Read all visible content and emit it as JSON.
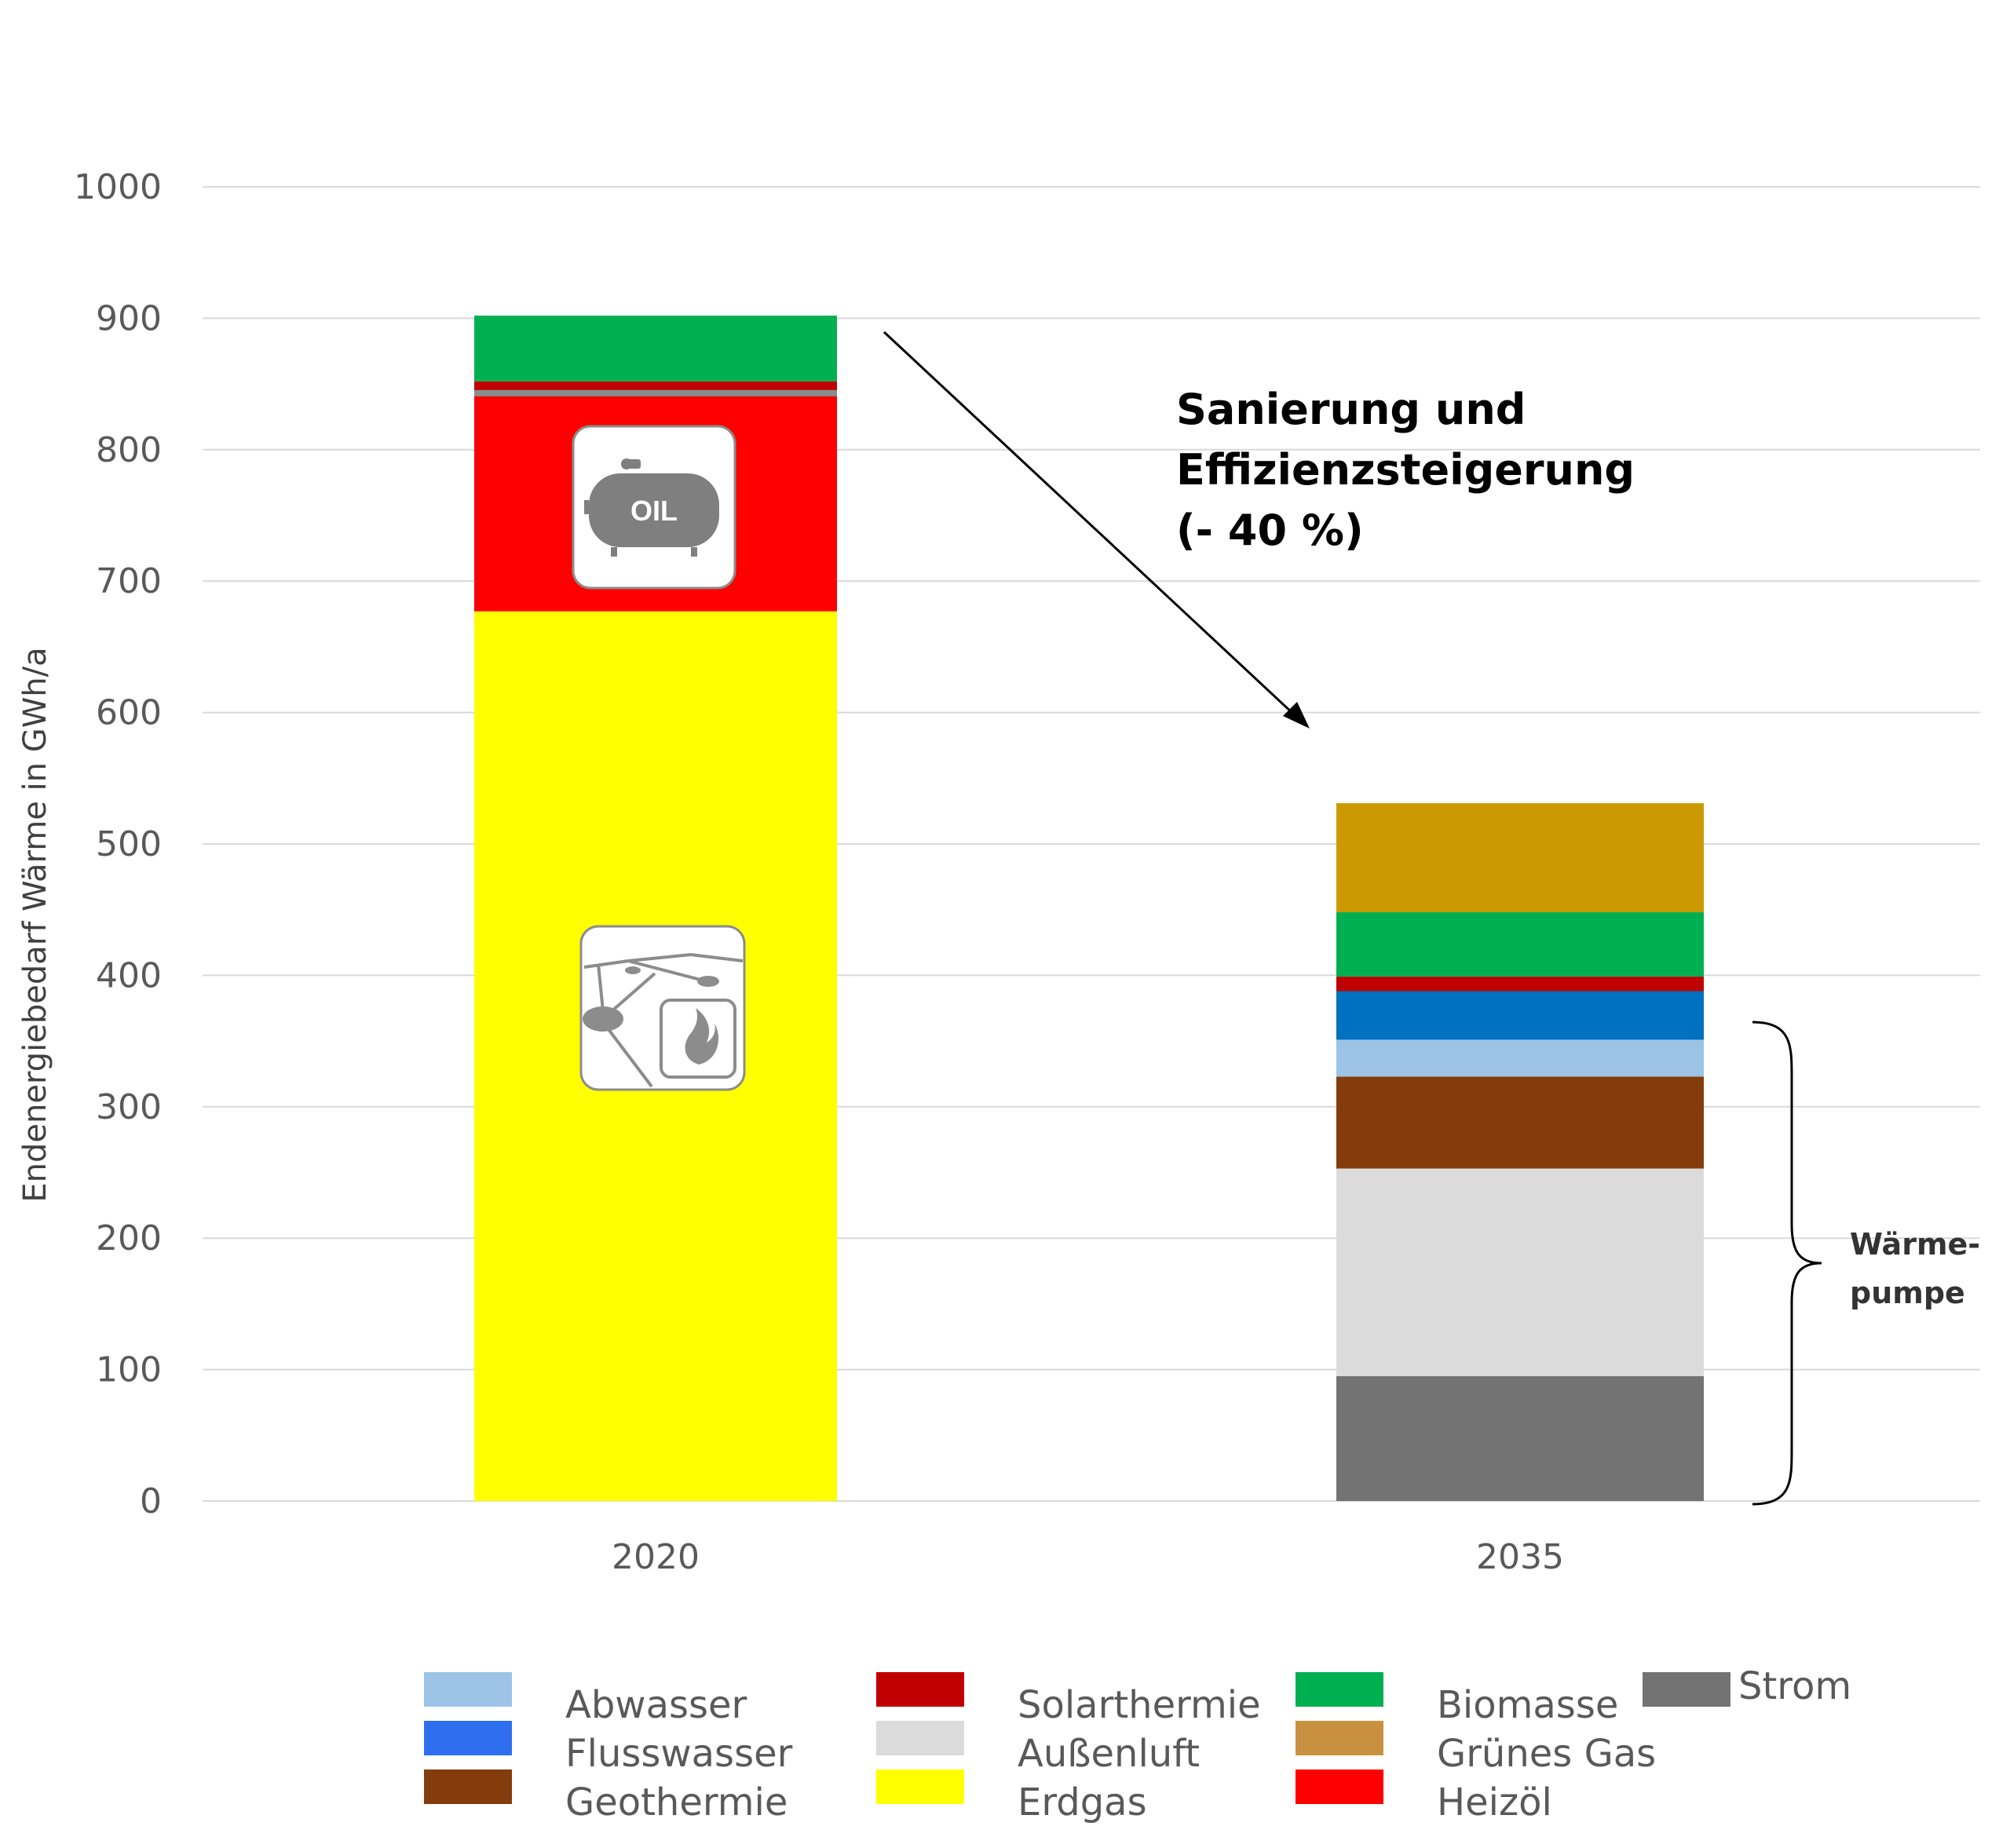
{
  "chart_data": {
    "type": "bar",
    "stacked": true,
    "categories": [
      "2020",
      "2035"
    ],
    "ylabel": "Endenergiebedarf Wärme in GWh/a",
    "ylim": [
      0,
      1000
    ],
    "yticks": [
      0,
      100,
      200,
      300,
      400,
      500,
      600,
      700,
      800,
      900,
      1000
    ],
    "grid": true,
    "legend_position": "bottom",
    "stack_order": [
      "Strom",
      "Erdgas",
      "Außenluft",
      "Geothermie",
      "Abwasser",
      "Flusswasser",
      "Heizöl",
      "Solarthermie",
      "Biomasse",
      "Grünes Gas"
    ],
    "series": [
      {
        "name": "Abwasser",
        "color": "#9DC3E6",
        "values": [
          0,
          28
        ]
      },
      {
        "name": "Flusswasser",
        "color": "#0070C0",
        "values": [
          0,
          37
        ]
      },
      {
        "name": "Geothermie",
        "color": "#843C0C",
        "values": [
          0,
          70
        ]
      },
      {
        "name": "Solarthermie",
        "color": "#C00000",
        "values": [
          12,
          11
        ]
      },
      {
        "name": "Außenluft",
        "color": "#DBDBDB",
        "values": [
          0,
          158
        ]
      },
      {
        "name": "Erdgas",
        "color": "#FFFF00",
        "values": [
          677,
          0
        ]
      },
      {
        "name": "Biomasse",
        "color": "#00B050",
        "values": [
          50,
          49
        ]
      },
      {
        "name": "Grünes Gas",
        "color": "#CC9900",
        "values": [
          0,
          83
        ]
      },
      {
        "name": "Heizöl",
        "color": "#FF0000",
        "values": [
          163,
          0
        ]
      },
      {
        "name": "Strom",
        "color": "#737373",
        "values": [
          0,
          95
        ]
      }
    ],
    "legend_colors": {
      "Abwasser": "#9DC3E6",
      "Flusswasser": "#2E6FF0",
      "Geothermie": "#843C0C",
      "Solarthermie": "#C00000",
      "Außenluft": "#DBDBDB",
      "Erdgas": "#FFFF00",
      "Biomasse": "#00B050",
      "Grünes Gas": "#C9913F",
      "Heizöl": "#FF0000",
      "Strom": "#737373"
    },
    "annotations": {
      "arrow_text": [
        "Sanierung und",
        "Effizienzsteigerung",
        "(- 40 %)"
      ],
      "brace_text": [
        "Wärme-",
        "pumpe"
      ],
      "brace_range": [
        0,
        362
      ]
    },
    "icons": [
      "oil-tank-icon",
      "gas-network-icon"
    ]
  }
}
